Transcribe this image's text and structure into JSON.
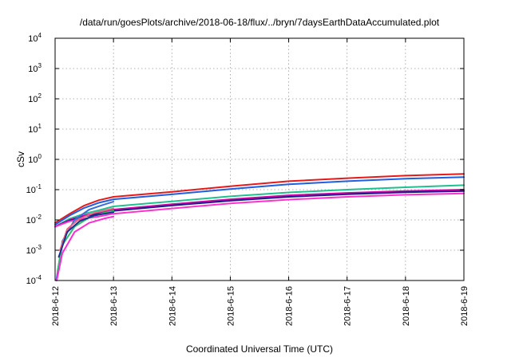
{
  "chart_data": {
    "type": "line",
    "title": "/data/run/goesPlots/archive/2018-06-18/flux/../bryn/7daysEarthDataAccumulated.plot",
    "xlabel": "Coordinated Universal Time (UTC)",
    "ylabel": "cSv",
    "xlim": [
      "2018-6-12",
      "2018-6-19"
    ],
    "x_ticks": [
      "2018-6-12",
      "2018-6-13",
      "2018-6-14",
      "2018-6-15",
      "2018-6-16",
      "2018-6-17",
      "2018-6-18",
      "2018-6-19"
    ],
    "y_scale": "log",
    "ylim": [
      0.0001,
      10000
    ],
    "y_ticks": [
      {
        "base": "10",
        "exp": "-4",
        "value": 0.0001
      },
      {
        "base": "10",
        "exp": "-3",
        "value": 0.001
      },
      {
        "base": "10",
        "exp": "-2",
        "value": 0.01
      },
      {
        "base": "10",
        "exp": "-1",
        "value": 0.1
      },
      {
        "base": "10",
        "exp": "0",
        "value": 1
      },
      {
        "base": "10",
        "exp": "1",
        "value": 10
      },
      {
        "base": "10",
        "exp": "2",
        "value": 100
      },
      {
        "base": "10",
        "exp": "3",
        "value": 1000
      },
      {
        "base": "10",
        "exp": "4",
        "value": 10000
      }
    ],
    "grid": true,
    "series": [
      {
        "color": "#e41a1c",
        "x": [
          "2018-6-12",
          "2018-6-12 06:00",
          "2018-6-12 12:00",
          "2018-6-12 18:00",
          "2018-6-13",
          "2018-6-14",
          "2018-6-15",
          "2018-6-16",
          "2018-6-17",
          "2018-6-18",
          "2018-6-19"
        ],
        "y": [
          0.008,
          0.016,
          0.03,
          0.045,
          0.058,
          0.085,
          0.13,
          0.19,
          0.24,
          0.29,
          0.33
        ]
      },
      {
        "color": "#1f5fe0",
        "x": [
          "2018-6-12",
          "2018-6-12 06:00",
          "2018-6-12 12:00",
          "2018-6-12 18:00",
          "2018-6-13",
          "2018-6-14",
          "2018-6-15",
          "2018-6-16",
          "2018-6-17",
          "2018-6-18",
          "2018-6-19"
        ],
        "y": [
          0.007,
          0.014,
          0.025,
          0.037,
          0.048,
          0.07,
          0.105,
          0.15,
          0.19,
          0.23,
          0.26
        ]
      },
      {
        "color": "#1fbf8f",
        "x": [
          "2018-6-12",
          "2018-6-12 06:00",
          "2018-6-12 12:00",
          "2018-6-12 18:00",
          "2018-6-13",
          "2018-6-14",
          "2018-6-15",
          "2018-6-16",
          "2018-6-17",
          "2018-6-18",
          "2018-6-19"
        ],
        "y": [
          0.006,
          0.011,
          0.016,
          0.021,
          0.028,
          0.041,
          0.06,
          0.081,
          0.1,
          0.12,
          0.14
        ]
      },
      {
        "color": "#d400a8",
        "x": [
          "2018-6-12",
          "2018-6-12 06:00",
          "2018-6-12 12:00",
          "2018-6-12 18:00",
          "2018-6-13",
          "2018-6-14",
          "2018-6-15",
          "2018-6-16",
          "2018-6-17",
          "2018-6-18",
          "2018-6-19"
        ],
        "y": [
          0.006,
          0.01,
          0.014,
          0.018,
          0.022,
          0.033,
          0.048,
          0.065,
          0.078,
          0.09,
          0.1
        ]
      },
      {
        "color": "#1a1a8a",
        "x": [
          "2018-6-12",
          "2018-6-12 06:00",
          "2018-6-12 12:00",
          "2018-6-12 18:00",
          "2018-6-13",
          "2018-6-14",
          "2018-6-15",
          "2018-6-16",
          "2018-6-17",
          "2018-6-18",
          "2018-6-19"
        ],
        "y": [
          0.006,
          0.0095,
          0.013,
          0.016,
          0.02,
          0.03,
          0.043,
          0.058,
          0.071,
          0.082,
          0.09
        ]
      },
      {
        "color": "#ff33cc",
        "x": [
          "2018-6-12",
          "2018-6-12 06:00",
          "2018-6-12 12:00",
          "2018-6-12 18:00",
          "2018-6-13",
          "2018-6-14",
          "2018-6-15",
          "2018-6-16",
          "2018-6-17",
          "2018-6-18",
          "2018-6-19"
        ],
        "y": [
          0.006,
          0.009,
          0.011,
          0.013,
          0.016,
          0.024,
          0.035,
          0.047,
          0.058,
          0.068,
          0.075
        ]
      },
      {
        "color": "#3a6fd8",
        "x": [
          "2018-6-12 00:30",
          "2018-6-12 03:00",
          "2018-6-12 08:00",
          "2018-6-12 14:00",
          "2018-6-12 20:00",
          "2018-6-13"
        ],
        "y": [
          0.0001,
          0.002,
          0.01,
          0.022,
          0.032,
          0.04
        ]
      },
      {
        "color": "#2fbf70",
        "x": [
          "2018-6-12 01:00",
          "2018-6-12 03:00",
          "2018-6-12 08:00",
          "2018-6-12 14:00",
          "2018-6-12 20:00",
          "2018-6-13"
        ],
        "y": [
          0.0002,
          0.0015,
          0.006,
          0.012,
          0.017,
          0.02
        ]
      },
      {
        "color": "#ff2bd6",
        "x": [
          "2018-6-12 00:40",
          "2018-6-12 03:00",
          "2018-6-12 08:00",
          "2018-6-12 14:00",
          "2018-6-12 20:00",
          "2018-6-13"
        ],
        "y": [
          0.0001,
          0.0008,
          0.004,
          0.008,
          0.011,
          0.013
        ]
      },
      {
        "color": "#f06080",
        "x": [
          "2018-6-12 02:00",
          "2018-6-12 05:00",
          "2018-6-12 10:00",
          "2018-6-12 16:00",
          "2018-6-13"
        ],
        "y": [
          0.001,
          0.005,
          0.011,
          0.017,
          0.024
        ]
      },
      {
        "color": "#1b2f8f",
        "x": [
          "2018-6-12 01:30",
          "2018-6-12 05:00",
          "2018-6-12 10:00",
          "2018-6-12 16:00",
          "2018-6-13"
        ],
        "y": [
          0.0006,
          0.004,
          0.009,
          0.014,
          0.018
        ]
      }
    ]
  }
}
